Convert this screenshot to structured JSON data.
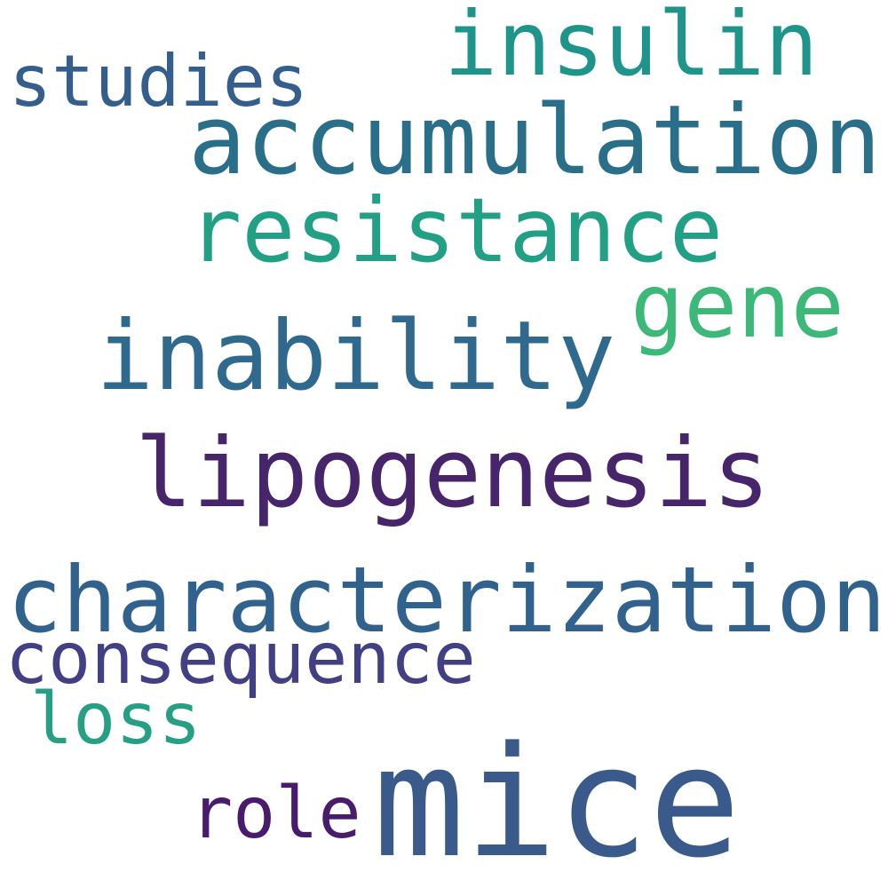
{
  "words": {
    "mice": {
      "text": "mice",
      "color": "#3b5a8c"
    },
    "characterization": {
      "text": "characterization",
      "color": "#31628e"
    },
    "lipogenesis": {
      "text": "lipogenesis",
      "color": "#46256b"
    },
    "accumulation": {
      "text": "accumulation",
      "color": "#2a6f8a"
    },
    "resistance": {
      "text": "resistance",
      "color": "#22a086"
    },
    "inability": {
      "text": "inability",
      "color": "#2f6a8e"
    },
    "insulin": {
      "text": "insulin",
      "color": "#1f948b"
    },
    "gene": {
      "text": "gene",
      "color": "#3cb879"
    },
    "studies": {
      "text": "studies",
      "color": "#345e8c"
    },
    "consequence": {
      "text": "consequence",
      "color": "#433f85"
    },
    "loss": {
      "text": "loss",
      "color": "#25a085"
    },
    "role": {
      "text": "role",
      "color": "#481b6d"
    }
  }
}
